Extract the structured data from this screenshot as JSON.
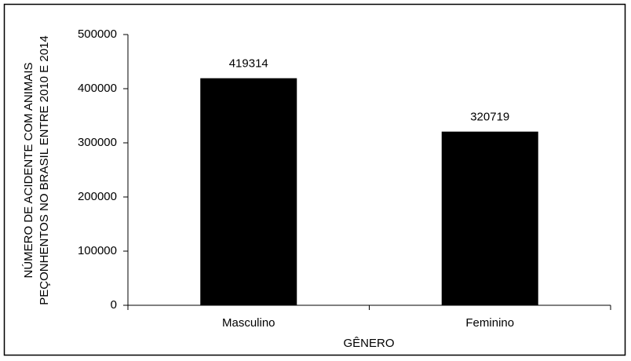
{
  "chart_data": {
    "type": "bar",
    "y_label": [
      "NÚMERO DE ACIDENTE COM ANIMAIS",
      "PEÇONHENTOS NO BRASIL ENTRE 2010 E 2014"
    ],
    "x_label": "GÊNERO",
    "categories": [
      "Masculino",
      "Feminino"
    ],
    "values": [
      419314,
      320719
    ],
    "color": "#000000",
    "ylim": [
      0,
      500000
    ],
    "yticks": [
      0,
      100000,
      200000,
      300000,
      400000,
      500000
    ],
    "grid": false
  }
}
